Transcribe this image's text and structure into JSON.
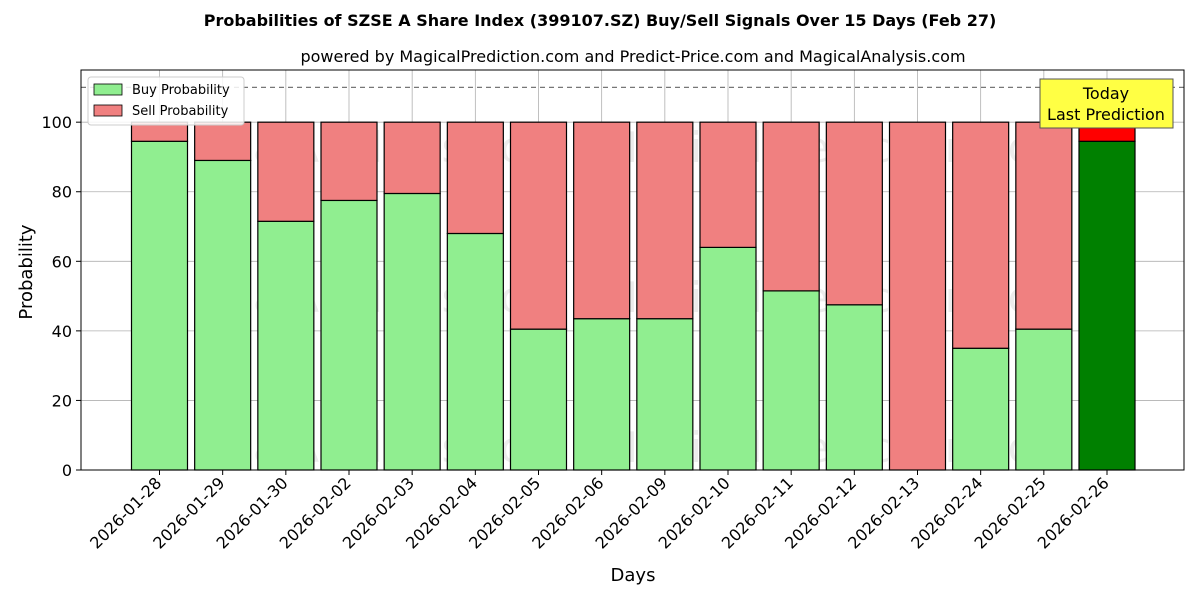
{
  "chart_data": {
    "type": "bar",
    "stacked": true,
    "title": "Probabilities of SZSE A Share Index (399107.SZ) Buy/Sell Signals Over 15 Days (Feb 27)",
    "subtitle": "powered by MagicalPrediction.com and Predict-Price.com and MagicalAnalysis.com",
    "xlabel": "Days",
    "ylabel": "Probability",
    "ylim": [
      0,
      115
    ],
    "yticks": [
      0,
      20,
      40,
      60,
      80,
      100
    ],
    "reference_line": 110,
    "grid": true,
    "legend_position": "top-left",
    "categories": [
      "2026-01-28",
      "2026-01-29",
      "2026-01-30",
      "2026-02-02",
      "2026-02-03",
      "2026-02-04",
      "2026-02-05",
      "2026-02-06",
      "2026-02-09",
      "2026-02-10",
      "2026-02-11",
      "2026-02-12",
      "2026-02-13",
      "2026-02-24",
      "2026-02-25",
      "2026-02-26"
    ],
    "series": [
      {
        "name": "Buy Probability",
        "color": "#90ee90",
        "highlight_color": "#008000",
        "values": [
          94.5,
          89,
          71.5,
          77.5,
          79.5,
          68,
          40.5,
          43.5,
          43.5,
          64,
          51.5,
          47.5,
          0,
          35,
          40.5,
          94.5
        ]
      },
      {
        "name": "Sell Probability",
        "color": "#f08080",
        "highlight_color": "#ff0000",
        "values": [
          5.5,
          11,
          28.5,
          22.5,
          20.5,
          32,
          59.5,
          56.5,
          56.5,
          36,
          48.5,
          52.5,
          100,
          65,
          59.5,
          5.5
        ]
      }
    ],
    "highlight_index": 15,
    "annotation": {
      "lines": [
        "Today",
        "Last Prediction"
      ],
      "background": "#ffff44"
    },
    "watermarks": [
      "MagicalAnalysis.com",
      "MagicalPrediction.com"
    ]
  }
}
